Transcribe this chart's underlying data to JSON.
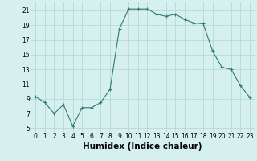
{
  "x": [
    0,
    1,
    2,
    3,
    4,
    5,
    6,
    7,
    8,
    9,
    10,
    11,
    12,
    13,
    14,
    15,
    16,
    17,
    18,
    19,
    20,
    21,
    22,
    23
  ],
  "y": [
    9.3,
    8.5,
    7.0,
    8.2,
    5.3,
    7.8,
    7.8,
    8.5,
    10.3,
    18.5,
    21.2,
    21.2,
    21.2,
    20.5,
    20.2,
    20.5,
    19.8,
    19.3,
    19.2,
    15.5,
    13.3,
    13.0,
    10.8,
    9.2
  ],
  "line_color": "#2e7d6e",
  "marker": "+",
  "marker_size": 3,
  "bg_color": "#d6f0f0",
  "grid_color": "#b8d8d8",
  "xlabel": "Humidex (Indice chaleur)",
  "xlim": [
    -0.5,
    23.5
  ],
  "ylim": [
    4.5,
    22.2
  ],
  "yticks": [
    5,
    7,
    9,
    11,
    13,
    15,
    17,
    19,
    21
  ],
  "xticks": [
    0,
    1,
    2,
    3,
    4,
    5,
    6,
    7,
    8,
    9,
    10,
    11,
    12,
    13,
    14,
    15,
    16,
    17,
    18,
    19,
    20,
    21,
    22,
    23
  ],
  "tick_fontsize": 5.5,
  "xlabel_fontsize": 7.5
}
